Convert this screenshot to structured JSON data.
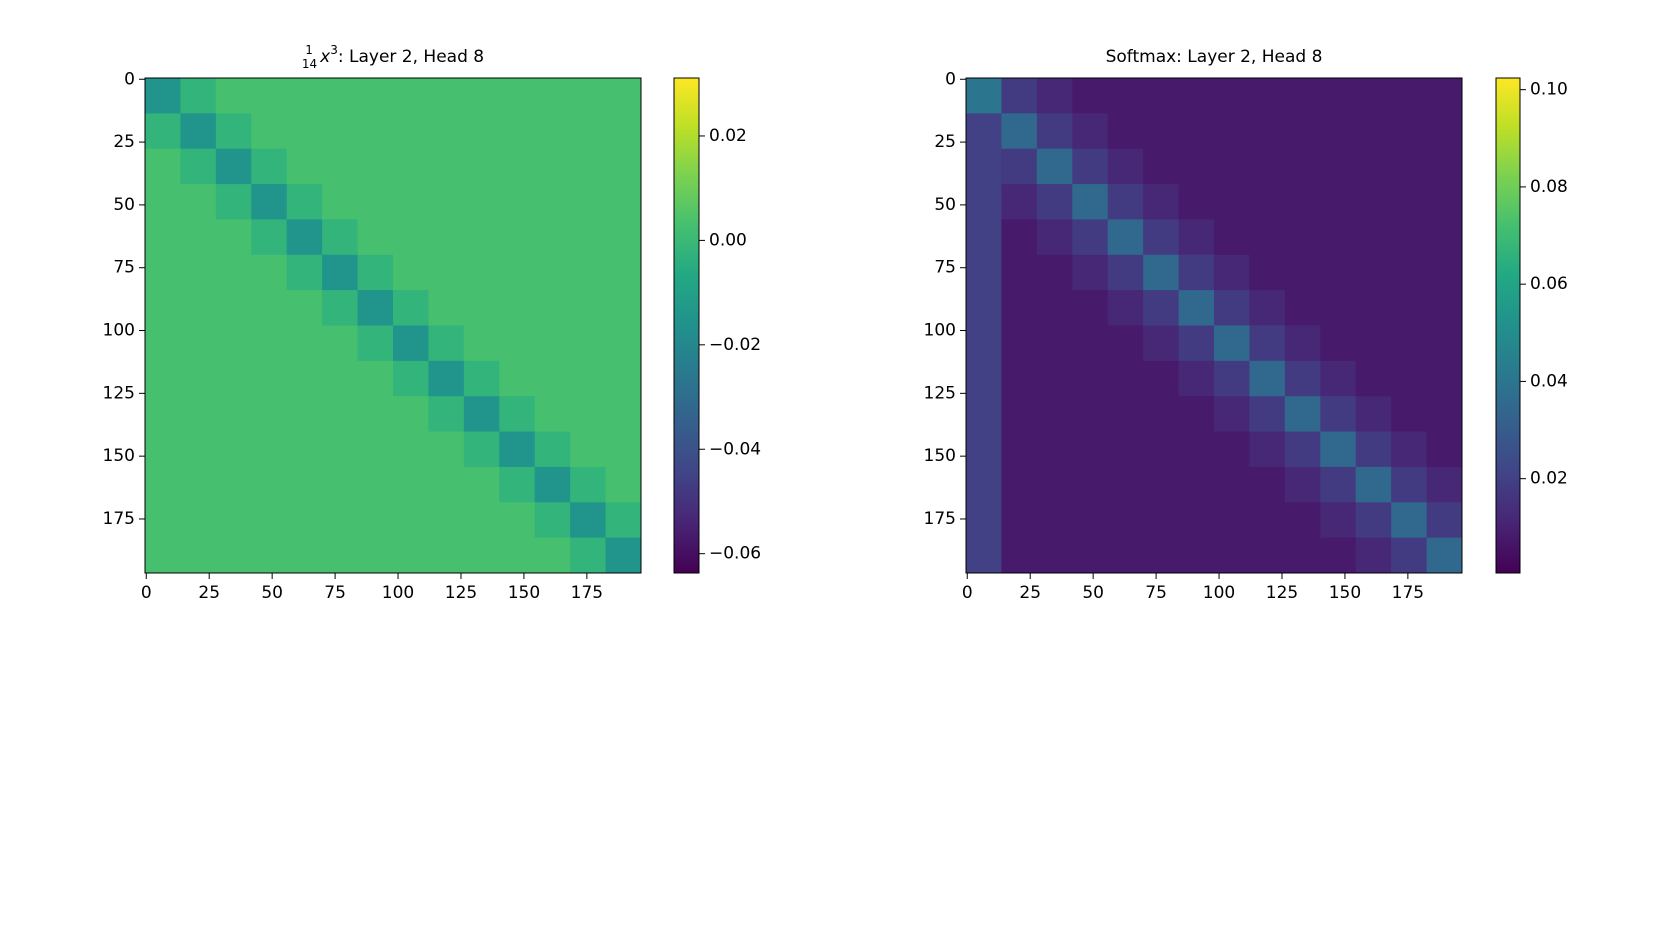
{
  "chart_data": [
    {
      "type": "heatmap",
      "colormap": "viridis",
      "title": {
        "numerator": "1",
        "denominator": "14",
        "variable": "x",
        "exponent": "3",
        "text": ": Layer 2, Head 8"
      },
      "xlim": [
        -0.5,
        196.5
      ],
      "ylim": [
        196.5,
        -0.5
      ],
      "xticks": [
        0,
        25,
        50,
        75,
        100,
        125,
        150,
        175
      ],
      "yticks": [
        0,
        25,
        50,
        75,
        100,
        125,
        150,
        175
      ],
      "clim": [
        -0.0637,
        0.0311
      ],
      "cticks": [
        {
          "value": 0.02,
          "label": "0.02"
        },
        {
          "value": 0,
          "label": "0.00"
        },
        {
          "value": -0.02,
          "label": "−0.02"
        },
        {
          "value": -0.04,
          "label": "−0.04"
        },
        {
          "value": -0.06,
          "label": "−0.06"
        }
      ],
      "values": [
        [
          -0.015,
          -0.002,
          0.003,
          0.003,
          0.003,
          0.003,
          0.003,
          0.003,
          0.003,
          0.003,
          0.003,
          0.003,
          0.003,
          0.003
        ],
        [
          -0.002,
          -0.015,
          -0.002,
          0.003,
          0.003,
          0.003,
          0.003,
          0.003,
          0.003,
          0.003,
          0.003,
          0.003,
          0.003,
          0.003
        ],
        [
          0.003,
          -0.002,
          -0.015,
          -0.002,
          0.003,
          0.003,
          0.003,
          0.003,
          0.003,
          0.003,
          0.003,
          0.003,
          0.003,
          0.003
        ],
        [
          0.003,
          0.003,
          -0.002,
          -0.015,
          -0.002,
          0.003,
          0.003,
          0.003,
          0.003,
          0.003,
          0.003,
          0.003,
          0.003,
          0.003
        ],
        [
          0.003,
          0.003,
          0.003,
          -0.002,
          -0.015,
          -0.002,
          0.003,
          0.003,
          0.003,
          0.003,
          0.003,
          0.003,
          0.003,
          0.003
        ],
        [
          0.003,
          0.003,
          0.003,
          0.003,
          -0.002,
          -0.015,
          -0.002,
          0.003,
          0.003,
          0.003,
          0.003,
          0.003,
          0.003,
          0.003
        ],
        [
          0.003,
          0.003,
          0.003,
          0.003,
          0.003,
          -0.002,
          -0.015,
          -0.002,
          0.003,
          0.003,
          0.003,
          0.003,
          0.003,
          0.003
        ],
        [
          0.003,
          0.003,
          0.003,
          0.003,
          0.003,
          0.003,
          -0.002,
          -0.015,
          -0.002,
          0.003,
          0.003,
          0.003,
          0.003,
          0.003
        ],
        [
          0.003,
          0.003,
          0.003,
          0.003,
          0.003,
          0.003,
          0.003,
          -0.002,
          -0.015,
          -0.002,
          0.003,
          0.003,
          0.003,
          0.003
        ],
        [
          0.003,
          0.003,
          0.003,
          0.003,
          0.003,
          0.003,
          0.003,
          0.003,
          -0.002,
          -0.015,
          -0.002,
          0.003,
          0.003,
          0.003
        ],
        [
          0.003,
          0.003,
          0.003,
          0.003,
          0.003,
          0.003,
          0.003,
          0.003,
          0.003,
          -0.002,
          -0.015,
          -0.002,
          0.003,
          0.003
        ],
        [
          0.003,
          0.003,
          0.003,
          0.003,
          0.003,
          0.003,
          0.003,
          0.003,
          0.003,
          0.003,
          -0.002,
          -0.015,
          -0.002,
          0.003
        ],
        [
          0.003,
          0.003,
          0.003,
          0.003,
          0.003,
          0.003,
          0.003,
          0.003,
          0.003,
          0.003,
          0.003,
          -0.002,
          -0.015,
          -0.002
        ],
        [
          0.003,
          0.003,
          0.003,
          0.003,
          0.003,
          0.003,
          0.003,
          0.003,
          0.003,
          0.003,
          0.003,
          0.003,
          -0.002,
          -0.015
        ]
      ]
    },
    {
      "type": "heatmap",
      "colormap": "viridis",
      "title": {
        "text": "Softmax: Layer 2, Head 8"
      },
      "xlim": [
        -0.5,
        196.5
      ],
      "ylim": [
        196.5,
        -0.5
      ],
      "xticks": [
        0,
        25,
        50,
        75,
        100,
        125,
        150,
        175
      ],
      "yticks": [
        0,
        25,
        50,
        75,
        100,
        125,
        150,
        175
      ],
      "clim": [
        0.0006,
        0.1024
      ],
      "cticks": [
        {
          "value": 0.1,
          "label": "0.10"
        },
        0.08,
        0.06,
        0.04,
        0.02
      ],
      "values": [
        [
          0.04,
          0.018,
          0.012,
          0.008,
          0.008,
          0.008,
          0.008,
          0.008,
          0.008,
          0.008,
          0.008,
          0.008,
          0.008,
          0.008
        ],
        [
          0.02,
          0.035,
          0.018,
          0.012,
          0.008,
          0.008,
          0.008,
          0.008,
          0.008,
          0.008,
          0.008,
          0.008,
          0.008,
          0.008
        ],
        [
          0.02,
          0.018,
          0.035,
          0.018,
          0.012,
          0.008,
          0.008,
          0.008,
          0.008,
          0.008,
          0.008,
          0.008,
          0.008,
          0.008
        ],
        [
          0.02,
          0.012,
          0.018,
          0.035,
          0.018,
          0.012,
          0.008,
          0.008,
          0.008,
          0.008,
          0.008,
          0.008,
          0.008,
          0.008
        ],
        [
          0.02,
          0.008,
          0.012,
          0.018,
          0.035,
          0.018,
          0.012,
          0.008,
          0.008,
          0.008,
          0.008,
          0.008,
          0.008,
          0.008
        ],
        [
          0.02,
          0.008,
          0.008,
          0.012,
          0.018,
          0.035,
          0.018,
          0.012,
          0.008,
          0.008,
          0.008,
          0.008,
          0.008,
          0.008
        ],
        [
          0.02,
          0.008,
          0.008,
          0.008,
          0.012,
          0.018,
          0.035,
          0.018,
          0.012,
          0.008,
          0.008,
          0.008,
          0.008,
          0.008
        ],
        [
          0.02,
          0.008,
          0.008,
          0.008,
          0.008,
          0.012,
          0.018,
          0.035,
          0.018,
          0.012,
          0.008,
          0.008,
          0.008,
          0.008
        ],
        [
          0.02,
          0.008,
          0.008,
          0.008,
          0.008,
          0.008,
          0.012,
          0.018,
          0.035,
          0.018,
          0.012,
          0.008,
          0.008,
          0.008
        ],
        [
          0.02,
          0.008,
          0.008,
          0.008,
          0.008,
          0.008,
          0.008,
          0.012,
          0.018,
          0.035,
          0.018,
          0.012,
          0.008,
          0.008
        ],
        [
          0.02,
          0.008,
          0.008,
          0.008,
          0.008,
          0.008,
          0.008,
          0.008,
          0.012,
          0.018,
          0.035,
          0.018,
          0.012,
          0.008
        ],
        [
          0.02,
          0.008,
          0.008,
          0.008,
          0.008,
          0.008,
          0.008,
          0.008,
          0.008,
          0.012,
          0.018,
          0.035,
          0.018,
          0.012
        ],
        [
          0.02,
          0.008,
          0.008,
          0.008,
          0.008,
          0.008,
          0.008,
          0.008,
          0.008,
          0.008,
          0.012,
          0.018,
          0.035,
          0.018
        ],
        [
          0.02,
          0.008,
          0.008,
          0.008,
          0.008,
          0.008,
          0.008,
          0.008,
          0.008,
          0.008,
          0.008,
          0.012,
          0.018,
          0.035
        ]
      ]
    }
  ]
}
